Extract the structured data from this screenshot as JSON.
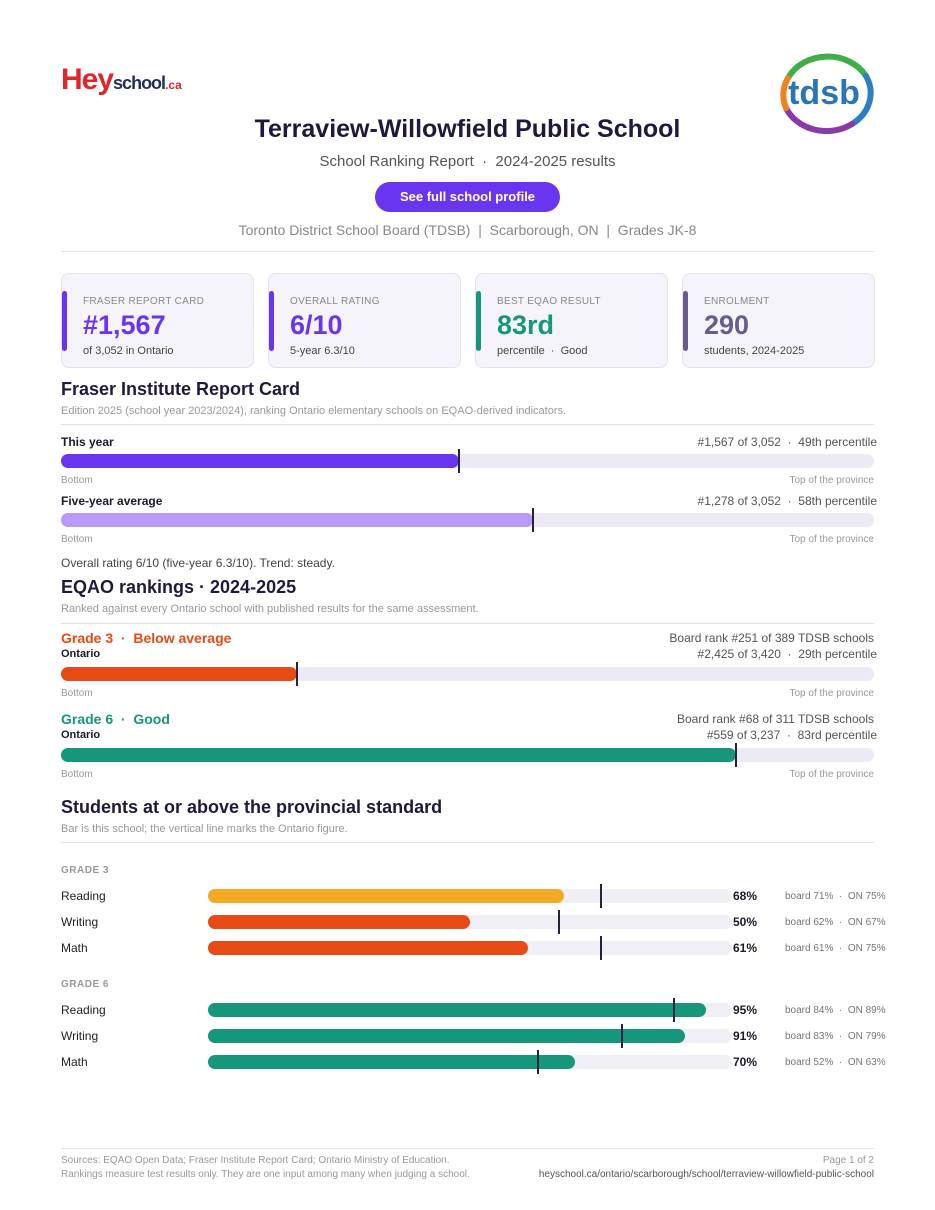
{
  "brand": {
    "part1": "Hey",
    "part2": "school",
    "part3": ".ca"
  },
  "board_logo": "tdsb",
  "header": {
    "title": "Terraview-Willowfield Public School",
    "subtitle": "School Ranking Report  ·  2024-2025 results",
    "profile_button": "See full school profile",
    "meta": "Toronto District School Board (TDSB)  |  Scarborough, ON  |  Grades JK-8"
  },
  "cards": [
    {
      "label": "FRASER REPORT CARD",
      "value": "#1,567",
      "sub": "of 3,052 in Ontario",
      "color": "#6a35f0"
    },
    {
      "label": "OVERALL RATING",
      "value": "6/10",
      "sub": "5-year 6.3/10",
      "color": "#6a35f0"
    },
    {
      "label": "BEST EQAO RESULT",
      "value": "83rd",
      "sub": "percentile  ·  Good",
      "color": "#16967a"
    },
    {
      "label": "ENROLMENT",
      "value": "290",
      "sub": "students, 2024-2025",
      "color": "#6b5a8e"
    }
  ],
  "fraser": {
    "heading": "Fraser Institute Report Card",
    "note": "Edition 2025 (school year 2023/2024), ranking Ontario elementary schools on EQAO-derived indicators.",
    "rows": [
      {
        "label": "This year",
        "right": "#1,567 of 3,052  ·  49th percentile",
        "percentile": 49,
        "color": "#6a35f0"
      },
      {
        "label": "Five-year average",
        "right": "#1,278 of 3,052  ·  58th percentile",
        "percentile": 58,
        "color": "#b99af7"
      }
    ],
    "bottom_caption": "Bottom",
    "top_caption": "Top of the province",
    "summary": "Overall rating 6/10 (five-year 6.3/10). Trend: steady."
  },
  "eqao": {
    "heading": "EQAO rankings  ·  2024-2025",
    "note": "Ranked against every Ontario school with published results for the same assessment.",
    "rows": [
      {
        "label": "Grade 3  ·  Below average",
        "sub": "Ontario",
        "board_rank": "Board rank #251 of 389 TDSB schools",
        "right": "#2,425 of 3,420  ·  29th percentile",
        "percentile": 29,
        "color": "#e84a14"
      },
      {
        "label": "Grade 6  ·  Good",
        "sub": "Ontario",
        "board_rank": "Board rank #68 of 311 TDSB schools",
        "right": "#559 of 3,237  ·  83rd percentile",
        "percentile": 83,
        "color": "#16967a"
      }
    ],
    "bottom_caption": "Bottom",
    "top_caption": "Top of the province"
  },
  "standard": {
    "heading": "Students at or above the provincial standard",
    "note": "Bar is this school; the vertical line marks the Ontario figure.",
    "groups": [
      {
        "label": "GRADE 3",
        "items": [
          {
            "subject": "Reading",
            "pct": 68,
            "pct_label": "68%",
            "ontario": 75,
            "comp": "board 71%  ·  ON 75%",
            "color": "#f2a924"
          },
          {
            "subject": "Writing",
            "pct": 50,
            "pct_label": "50%",
            "ontario": 67,
            "comp": "board 62%  ·  ON 67%",
            "color": "#e84a14"
          },
          {
            "subject": "Math",
            "pct": 61,
            "pct_label": "61%",
            "ontario": 75,
            "comp": "board 61%  ·  ON 75%",
            "color": "#e84a14"
          }
        ]
      },
      {
        "label": "GRADE 6",
        "items": [
          {
            "subject": "Reading",
            "pct": 95,
            "pct_label": "95%",
            "ontario": 89,
            "comp": "board 84%  ·  ON 89%",
            "color": "#16967a"
          },
          {
            "subject": "Writing",
            "pct": 91,
            "pct_label": "91%",
            "ontario": 79,
            "comp": "board 83%  ·  ON 79%",
            "color": "#16967a"
          },
          {
            "subject": "Math",
            "pct": 70,
            "pct_label": "70%",
            "ontario": 63,
            "comp": "board 52%  ·  ON 63%",
            "color": "#16967a"
          }
        ]
      }
    ]
  },
  "footer": {
    "sources": "Sources: EQAO Open Data; Fraser Institute Report Card; Ontario Ministry of Education.",
    "disclaimer": "Rankings measure test results only. They are one input among many when judging a school.",
    "page": "Page 1 of 2",
    "url": "heyschool.ca/ontario/scarborough/school/terraview-willowfield-public-school"
  }
}
